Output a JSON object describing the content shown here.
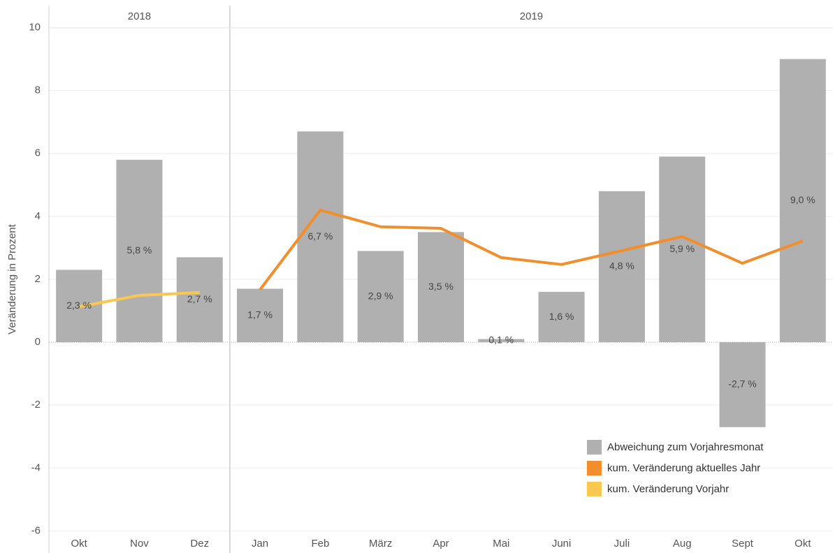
{
  "chart_data": {
    "type": "bar-line",
    "y_label": "Veränderung in Prozent",
    "panels": [
      {
        "title": "2018",
        "categories": [
          "Okt",
          "Nov",
          "Dez"
        ]
      },
      {
        "title": "2019",
        "categories": [
          "Jan",
          "Feb",
          "März",
          "Apr",
          "Mai",
          "Juni",
          "Juli",
          "Aug",
          "Sept",
          "Okt"
        ]
      }
    ],
    "series": [
      {
        "name": "Abweichung zum Vorjahresmonat",
        "color": "#b0b0b1",
        "kind": "bar",
        "values": [
          2.3,
          5.8,
          2.7,
          1.7,
          6.7,
          2.9,
          3.5,
          0.1,
          1.6,
          4.8,
          5.9,
          -2.7,
          9.0
        ],
        "value_labels": [
          "2,3 %",
          "5,8 %",
          "2,7 %",
          "1,7 %",
          "6,7 %",
          "2,9 %",
          "3,5 %",
          "0,1 %",
          "1,6 %",
          "4,8 %",
          "5,9 %",
          "-2,7 %",
          "9,0 %"
        ]
      },
      {
        "name": "kum. Veränderung aktuelles Jahr",
        "color": "#f28e2b",
        "kind": "line",
        "values": [
          null,
          null,
          null,
          1.67,
          4.2,
          3.67,
          3.62,
          2.69,
          2.47,
          2.91,
          3.36,
          2.51,
          3.22
        ]
      },
      {
        "name": "kum. Veränderung Vorjahr",
        "color": "#f9c851",
        "kind": "line",
        "values": [
          1.13,
          1.49,
          1.58,
          null,
          null,
          null,
          null,
          null,
          null,
          null,
          null,
          null,
          null
        ]
      }
    ],
    "ylim": [
      -6.7,
      10.7
    ],
    "yticks": [
      -6,
      -4,
      -2,
      0,
      2,
      4,
      6,
      8,
      10
    ],
    "grid": true,
    "legend": "lower right"
  }
}
